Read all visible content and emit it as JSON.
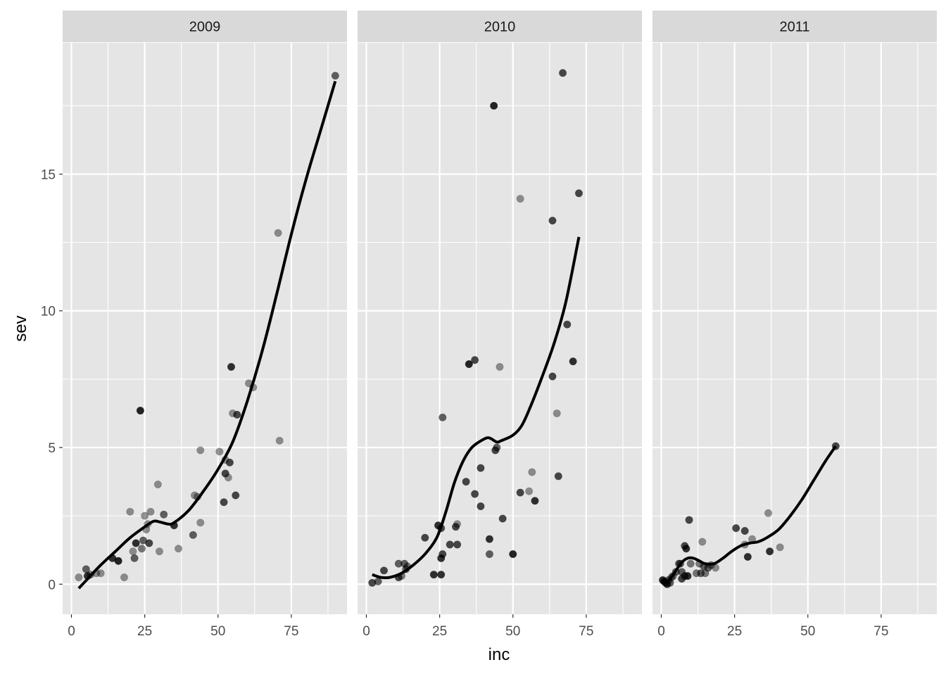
{
  "chart_data": {
    "type": "scatter",
    "xlabel": "inc",
    "ylabel": "sev",
    "xlim": [
      -3,
      94
    ],
    "ylim": [
      -1.1,
      19.8
    ],
    "x_ticks": [
      0,
      25,
      50,
      75
    ],
    "x_tick_labels": [
      "0",
      "25",
      "50",
      "75"
    ],
    "y_ticks": [
      0,
      5,
      10,
      15
    ],
    "y_tick_labels": [
      "0",
      "5",
      "10",
      "15"
    ],
    "grid": true,
    "legend": "none",
    "colors": {
      "panel_bg": "#e5e5e5",
      "strip_bg": "#d9d9d9",
      "grid": "#ffffff",
      "point": "#000000",
      "line": "#000000",
      "text": "#1a1a1a",
      "tick_text": "#4d4d4d"
    },
    "facets": [
      {
        "label": "2009",
        "points": [
          {
            "x": 2.5,
            "y": 0.25,
            "a": 0.4
          },
          {
            "x": 5,
            "y": 0.55,
            "a": 0.6
          },
          {
            "x": 5.5,
            "y": 0.3,
            "a": 0.8
          },
          {
            "x": 6.5,
            "y": 0.35,
            "a": 0.5
          },
          {
            "x": 8.5,
            "y": 0.4,
            "a": 0.4
          },
          {
            "x": 10,
            "y": 0.4,
            "a": 0.4
          },
          {
            "x": 14,
            "y": 0.95,
            "a": 0.8
          },
          {
            "x": 16,
            "y": 0.85,
            "a": 0.85
          },
          {
            "x": 18,
            "y": 0.25,
            "a": 0.4
          },
          {
            "x": 20,
            "y": 2.65,
            "a": 0.4
          },
          {
            "x": 21,
            "y": 1.2,
            "a": 0.4
          },
          {
            "x": 21.5,
            "y": 0.95,
            "a": 0.6
          },
          {
            "x": 22,
            "y": 1.5,
            "a": 0.8
          },
          {
            "x": 23.5,
            "y": 6.35,
            "a": 0.85
          },
          {
            "x": 24,
            "y": 1.3,
            "a": 0.5
          },
          {
            "x": 24.5,
            "y": 1.6,
            "a": 0.6
          },
          {
            "x": 25,
            "y": 2.5,
            "a": 0.4
          },
          {
            "x": 25.5,
            "y": 2.0,
            "a": 0.4
          },
          {
            "x": 26,
            "y": 2.2,
            "a": 0.4
          },
          {
            "x": 26.5,
            "y": 1.5,
            "a": 0.7
          },
          {
            "x": 27,
            "y": 2.65,
            "a": 0.4
          },
          {
            "x": 29.5,
            "y": 3.65,
            "a": 0.4
          },
          {
            "x": 30,
            "y": 1.2,
            "a": 0.4
          },
          {
            "x": 31.5,
            "y": 2.55,
            "a": 0.6
          },
          {
            "x": 35,
            "y": 2.15,
            "a": 0.8
          },
          {
            "x": 36.5,
            "y": 1.3,
            "a": 0.4
          },
          {
            "x": 41.5,
            "y": 1.8,
            "a": 0.6
          },
          {
            "x": 42,
            "y": 3.25,
            "a": 0.4
          },
          {
            "x": 43,
            "y": 3.2,
            "a": 0.4
          },
          {
            "x": 44,
            "y": 4.9,
            "a": 0.4
          },
          {
            "x": 44,
            "y": 2.25,
            "a": 0.4
          },
          {
            "x": 50.5,
            "y": 4.85,
            "a": 0.4
          },
          {
            "x": 52,
            "y": 3.0,
            "a": 0.7
          },
          {
            "x": 52.5,
            "y": 4.55,
            "a": 0.4
          },
          {
            "x": 52.5,
            "y": 4.05,
            "a": 0.7
          },
          {
            "x": 53.5,
            "y": 3.9,
            "a": 0.4
          },
          {
            "x": 54,
            "y": 4.45,
            "a": 0.7
          },
          {
            "x": 54.5,
            "y": 7.95,
            "a": 0.8
          },
          {
            "x": 55,
            "y": 6.25,
            "a": 0.4
          },
          {
            "x": 56,
            "y": 3.25,
            "a": 0.7
          },
          {
            "x": 56.5,
            "y": 6.2,
            "a": 0.7
          },
          {
            "x": 60.5,
            "y": 7.35,
            "a": 0.4
          },
          {
            "x": 62,
            "y": 7.2,
            "a": 0.4
          },
          {
            "x": 70.5,
            "y": 12.85,
            "a": 0.4
          },
          {
            "x": 71,
            "y": 5.25,
            "a": 0.4
          },
          {
            "x": 90,
            "y": 18.6,
            "a": 0.6
          }
        ],
        "smooth": [
          [
            2.5,
            -0.15
          ],
          [
            6,
            0.25
          ],
          [
            10,
            0.7
          ],
          [
            15,
            1.2
          ],
          [
            20,
            1.7
          ],
          [
            25,
            2.1
          ],
          [
            28,
            2.3
          ],
          [
            30,
            2.28
          ],
          [
            33,
            2.2
          ],
          [
            35,
            2.25
          ],
          [
            40,
            2.7
          ],
          [
            45,
            3.4
          ],
          [
            50,
            4.2
          ],
          [
            55,
            5.2
          ],
          [
            60,
            6.7
          ],
          [
            65,
            8.5
          ],
          [
            70,
            10.6
          ],
          [
            75,
            12.8
          ],
          [
            80,
            14.8
          ],
          [
            85,
            16.6
          ],
          [
            90,
            18.4
          ]
        ]
      },
      {
        "label": "2010",
        "points": [
          {
            "x": 2,
            "y": 0.05,
            "a": 0.7
          },
          {
            "x": 4,
            "y": 0.1,
            "a": 0.6
          },
          {
            "x": 6,
            "y": 0.5,
            "a": 0.7
          },
          {
            "x": 11,
            "y": 0.75,
            "a": 0.6
          },
          {
            "x": 11,
            "y": 0.25,
            "a": 0.7
          },
          {
            "x": 12,
            "y": 0.3,
            "a": 0.5
          },
          {
            "x": 13,
            "y": 0.75,
            "a": 0.6
          },
          {
            "x": 13.5,
            "y": 0.55,
            "a": 0.6
          },
          {
            "x": 14,
            "y": 0.65,
            "a": 0.5
          },
          {
            "x": 20,
            "y": 1.7,
            "a": 0.7
          },
          {
            "x": 23,
            "y": 0.35,
            "a": 0.8
          },
          {
            "x": 24.5,
            "y": 2.15,
            "a": 0.8
          },
          {
            "x": 25.5,
            "y": 2.05,
            "a": 0.7
          },
          {
            "x": 25.5,
            "y": 0.95,
            "a": 0.8
          },
          {
            "x": 25.5,
            "y": 0.35,
            "a": 0.8
          },
          {
            "x": 26,
            "y": 6.1,
            "a": 0.6
          },
          {
            "x": 26,
            "y": 1.1,
            "a": 0.7
          },
          {
            "x": 28.5,
            "y": 1.45,
            "a": 0.7
          },
          {
            "x": 30.5,
            "y": 2.1,
            "a": 0.7
          },
          {
            "x": 31,
            "y": 2.2,
            "a": 0.4
          },
          {
            "x": 31,
            "y": 1.45,
            "a": 0.7
          },
          {
            "x": 34,
            "y": 3.75,
            "a": 0.7
          },
          {
            "x": 35,
            "y": 8.05,
            "a": 0.85
          },
          {
            "x": 37,
            "y": 8.2,
            "a": 0.7
          },
          {
            "x": 37,
            "y": 3.3,
            "a": 0.7
          },
          {
            "x": 39,
            "y": 4.25,
            "a": 0.7
          },
          {
            "x": 39,
            "y": 2.85,
            "a": 0.7
          },
          {
            "x": 42,
            "y": 1.65,
            "a": 0.8
          },
          {
            "x": 42,
            "y": 1.1,
            "a": 0.6
          },
          {
            "x": 43.5,
            "y": 17.5,
            "a": 0.85
          },
          {
            "x": 44,
            "y": 4.9,
            "a": 0.7
          },
          {
            "x": 44.5,
            "y": 5.0,
            "a": 0.6
          },
          {
            "x": 45.5,
            "y": 7.95,
            "a": 0.4
          },
          {
            "x": 46.5,
            "y": 2.4,
            "a": 0.7
          },
          {
            "x": 50,
            "y": 1.1,
            "a": 0.85
          },
          {
            "x": 52.5,
            "y": 14.1,
            "a": 0.4
          },
          {
            "x": 52.5,
            "y": 3.35,
            "a": 0.7
          },
          {
            "x": 55.5,
            "y": 3.4,
            "a": 0.4
          },
          {
            "x": 56.5,
            "y": 4.1,
            "a": 0.4
          },
          {
            "x": 57.5,
            "y": 3.05,
            "a": 0.8
          },
          {
            "x": 63.5,
            "y": 13.3,
            "a": 0.7
          },
          {
            "x": 63.5,
            "y": 7.6,
            "a": 0.7
          },
          {
            "x": 65,
            "y": 6.25,
            "a": 0.4
          },
          {
            "x": 65.5,
            "y": 3.95,
            "a": 0.7
          },
          {
            "x": 67,
            "y": 18.7,
            "a": 0.7
          },
          {
            "x": 68.5,
            "y": 9.5,
            "a": 0.7
          },
          {
            "x": 70.5,
            "y": 8.15,
            "a": 0.8
          },
          {
            "x": 72.5,
            "y": 14.3,
            "a": 0.7
          }
        ],
        "smooth": [
          [
            2,
            0.35
          ],
          [
            5,
            0.25
          ],
          [
            8,
            0.25
          ],
          [
            12,
            0.4
          ],
          [
            16,
            0.7
          ],
          [
            20,
            1.1
          ],
          [
            24,
            1.7
          ],
          [
            27,
            2.6
          ],
          [
            30,
            3.7
          ],
          [
            33,
            4.5
          ],
          [
            36,
            5.0
          ],
          [
            40,
            5.3
          ],
          [
            42,
            5.35
          ],
          [
            44.5,
            5.2
          ],
          [
            46,
            5.25
          ],
          [
            50,
            5.45
          ],
          [
            53,
            5.8
          ],
          [
            56,
            6.5
          ],
          [
            60,
            7.6
          ],
          [
            64,
            8.8
          ],
          [
            68,
            10.3
          ],
          [
            72.5,
            12.7
          ]
        ]
      },
      {
        "label": "2011",
        "points": [
          {
            "x": 0.5,
            "y": 0.15,
            "a": 0.8
          },
          {
            "x": 1,
            "y": 0.1,
            "a": 0.8
          },
          {
            "x": 1.5,
            "y": 0.05,
            "a": 0.7
          },
          {
            "x": 2,
            "y": 0.0,
            "a": 0.8
          },
          {
            "x": 2.5,
            "y": 0.15,
            "a": 0.6
          },
          {
            "x": 3,
            "y": 0.05,
            "a": 0.6
          },
          {
            "x": 3.5,
            "y": 0.25,
            "a": 0.5
          },
          {
            "x": 4,
            "y": 0.3,
            "a": 0.5
          },
          {
            "x": 5,
            "y": 0.45,
            "a": 0.6
          },
          {
            "x": 6,
            "y": 0.75,
            "a": 0.6
          },
          {
            "x": 6.5,
            "y": 0.75,
            "a": 0.6
          },
          {
            "x": 7,
            "y": 0.45,
            "a": 0.6
          },
          {
            "x": 7,
            "y": 0.2,
            "a": 0.7
          },
          {
            "x": 8,
            "y": 1.4,
            "a": 0.7
          },
          {
            "x": 8,
            "y": 0.3,
            "a": 0.7
          },
          {
            "x": 8.5,
            "y": 1.3,
            "a": 0.8
          },
          {
            "x": 9,
            "y": 0.3,
            "a": 0.8
          },
          {
            "x": 9.5,
            "y": 2.35,
            "a": 0.7
          },
          {
            "x": 10,
            "y": 0.75,
            "a": 0.5
          },
          {
            "x": 12,
            "y": 0.4,
            "a": 0.5
          },
          {
            "x": 13,
            "y": 0.75,
            "a": 0.5
          },
          {
            "x": 13.5,
            "y": 0.4,
            "a": 0.6
          },
          {
            "x": 14,
            "y": 1.55,
            "a": 0.4
          },
          {
            "x": 14.5,
            "y": 0.65,
            "a": 0.6
          },
          {
            "x": 15,
            "y": 0.4,
            "a": 0.5
          },
          {
            "x": 16,
            "y": 0.6,
            "a": 0.6
          },
          {
            "x": 17,
            "y": 0.7,
            "a": 0.5
          },
          {
            "x": 18.5,
            "y": 0.6,
            "a": 0.4
          },
          {
            "x": 25.5,
            "y": 2.05,
            "a": 0.7
          },
          {
            "x": 28.5,
            "y": 1.95,
            "a": 0.7
          },
          {
            "x": 28.5,
            "y": 1.45,
            "a": 0.4
          },
          {
            "x": 29.5,
            "y": 1.0,
            "a": 0.8
          },
          {
            "x": 31,
            "y": 1.65,
            "a": 0.4
          },
          {
            "x": 36.5,
            "y": 2.6,
            "a": 0.4
          },
          {
            "x": 37,
            "y": 1.2,
            "a": 0.8
          },
          {
            "x": 40.5,
            "y": 1.35,
            "a": 0.4
          },
          {
            "x": 59.5,
            "y": 5.05,
            "a": 0.7
          }
        ],
        "smooth": [
          [
            1,
            0.05
          ],
          [
            3,
            0.2
          ],
          [
            5,
            0.5
          ],
          [
            7,
            0.8
          ],
          [
            9,
            0.95
          ],
          [
            11,
            0.95
          ],
          [
            13,
            0.85
          ],
          [
            15,
            0.75
          ],
          [
            18,
            0.75
          ],
          [
            21,
            0.95
          ],
          [
            24,
            1.2
          ],
          [
            27,
            1.4
          ],
          [
            30,
            1.5
          ],
          [
            33,
            1.55
          ],
          [
            36,
            1.7
          ],
          [
            40,
            2.0
          ],
          [
            44,
            2.5
          ],
          [
            48,
            3.1
          ],
          [
            52,
            3.8
          ],
          [
            56,
            4.5
          ],
          [
            59.5,
            5.05
          ]
        ]
      }
    ]
  }
}
